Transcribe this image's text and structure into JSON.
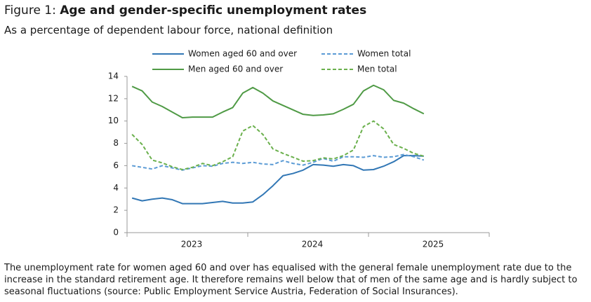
{
  "chart_data": {
    "type": "line",
    "figure_label": "Figure 1:",
    "title": "Age and gender-specific unemployment rates",
    "subtitle": "As a percentage of dependent labour force, national definition",
    "note": "The unemployment rate for women aged 60 and over has equalised with the general female unemployment rate due to the increase in the standard retirement age. It therefore remains well below that of men of the same age and is hardly subject to seasonal fluctuations (source: Public Employment Service Austria, Federation of Social Insurances).",
    "x_groups": [
      "2023",
      "2024",
      "2025"
    ],
    "categories": [
      null,
      null,
      null,
      null,
      null,
      null,
      null,
      null,
      null,
      null,
      null,
      null,
      null,
      null,
      null,
      null,
      null,
      null,
      null,
      null,
      null,
      null,
      null,
      null,
      null,
      null,
      null,
      null,
      null,
      null
    ],
    "ylim": [
      0,
      14
    ],
    "yticks": [
      0,
      2,
      4,
      6,
      8,
      10,
      12,
      14
    ],
    "grid": false,
    "series": [
      {
        "name": "Women aged 60 and over",
        "color": "#3277b5",
        "dash": false,
        "values": [
          3.1,
          2.85,
          3.0,
          3.1,
          2.95,
          2.6,
          2.6,
          2.6,
          2.7,
          2.8,
          2.65,
          2.65,
          2.75,
          3.4,
          4.2,
          5.1,
          5.3,
          5.6,
          6.1,
          6.05,
          5.95,
          6.1,
          6.0,
          5.6,
          5.65,
          5.95,
          6.35,
          6.9,
          6.9,
          6.85
        ]
      },
      {
        "name": "Women total",
        "color": "#5b9bd5",
        "dash": true,
        "values": [
          6.0,
          5.85,
          5.7,
          6.0,
          5.8,
          5.6,
          5.8,
          6.0,
          5.95,
          6.2,
          6.3,
          6.2,
          6.3,
          6.15,
          6.1,
          6.45,
          6.2,
          6.05,
          6.3,
          6.65,
          6.4,
          6.8,
          6.8,
          6.75,
          6.9,
          6.75,
          6.8,
          7.0,
          6.8,
          6.5
        ]
      },
      {
        "name": "Men aged 60 and over",
        "color": "#4f9a45",
        "dash": false,
        "values": [
          13.1,
          12.7,
          11.7,
          11.3,
          10.8,
          10.3,
          10.35,
          10.35,
          10.35,
          10.8,
          11.2,
          12.5,
          13.0,
          12.5,
          11.8,
          11.4,
          11.0,
          10.6,
          10.5,
          10.55,
          10.65,
          11.05,
          11.5,
          12.7,
          13.2,
          12.8,
          11.85,
          11.6,
          11.1,
          10.65
        ]
      },
      {
        "name": "Men total",
        "color": "#6ab04c",
        "dash": true,
        "values": [
          8.8,
          7.9,
          6.5,
          6.25,
          5.9,
          5.65,
          5.85,
          6.2,
          6.0,
          6.35,
          6.8,
          9.1,
          9.6,
          8.8,
          7.5,
          7.1,
          6.75,
          6.4,
          6.45,
          6.7,
          6.6,
          6.9,
          7.4,
          9.5,
          10.0,
          9.3,
          7.9,
          7.55,
          7.1,
          6.85
        ]
      }
    ]
  }
}
